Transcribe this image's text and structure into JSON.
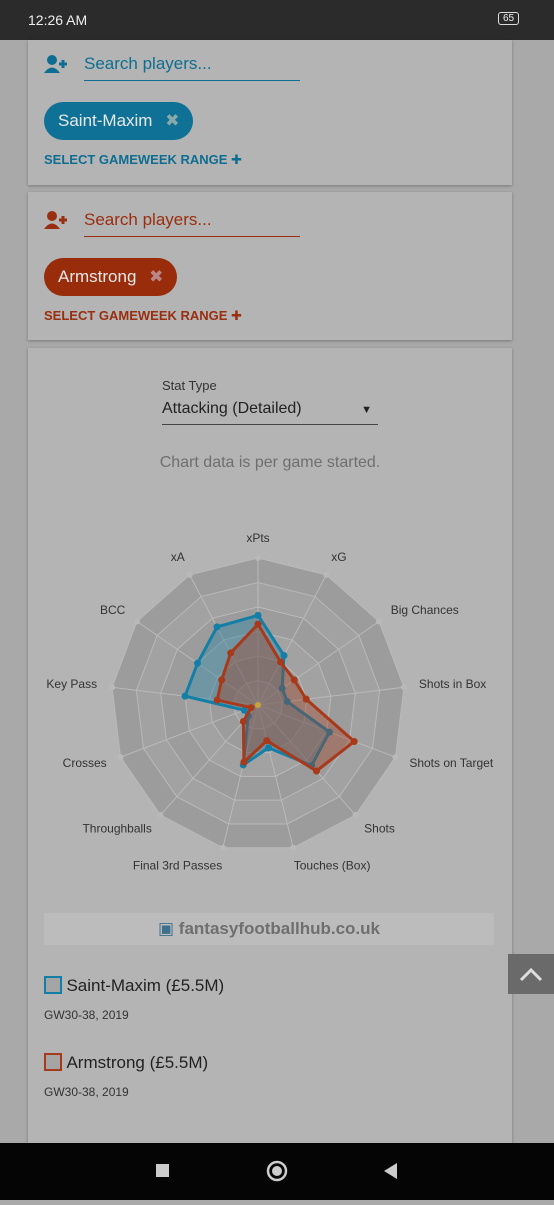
{
  "status_bar": {
    "time": "12:26 AM",
    "battery": "65"
  },
  "player_cards": [
    {
      "search_placeholder": "Search players...",
      "chip": "Saint-Maxim",
      "range_button": "SELECT GAMEWEEK RANGE"
    },
    {
      "search_placeholder": "Search players...",
      "chip": "Armstrong",
      "range_button": "SELECT GAMEWEEK RANGE"
    }
  ],
  "stat_type": {
    "label": "Stat Type",
    "value": "Attacking (Detailed)"
  },
  "note": "Chart data is per game started.",
  "chart_data": {
    "type": "radar",
    "categories": [
      "xPts",
      "xG",
      "Big Chances",
      "Shots in Box",
      "Shots on Target",
      "Shots",
      "Touches (Box)",
      "Final 3rd Passes",
      "Throughballs",
      "Crosses",
      "Key Pass",
      "BCC",
      "xA"
    ],
    "rlim": [
      0,
      1
    ],
    "series": [
      {
        "name": "Saint-Maxim (£5.5M)",
        "color": "#147fa6",
        "values": [
          0.61,
          0.38,
          0.2,
          0.2,
          0.52,
          0.55,
          0.3,
          0.42,
          0.1,
          0.1,
          0.5,
          0.5,
          0.6
        ]
      },
      {
        "name": "Armstrong (£5.5M)",
        "color": "#a8391a",
        "values": [
          0.55,
          0.33,
          0.3,
          0.33,
          0.7,
          0.6,
          0.25,
          0.4,
          0.15,
          0.05,
          0.28,
          0.3,
          0.4
        ]
      }
    ]
  },
  "watermark": "fantasyfootballhub.co.uk",
  "legend_subtitles": [
    "GW30-38, 2019",
    "GW30-38, 2019"
  ]
}
